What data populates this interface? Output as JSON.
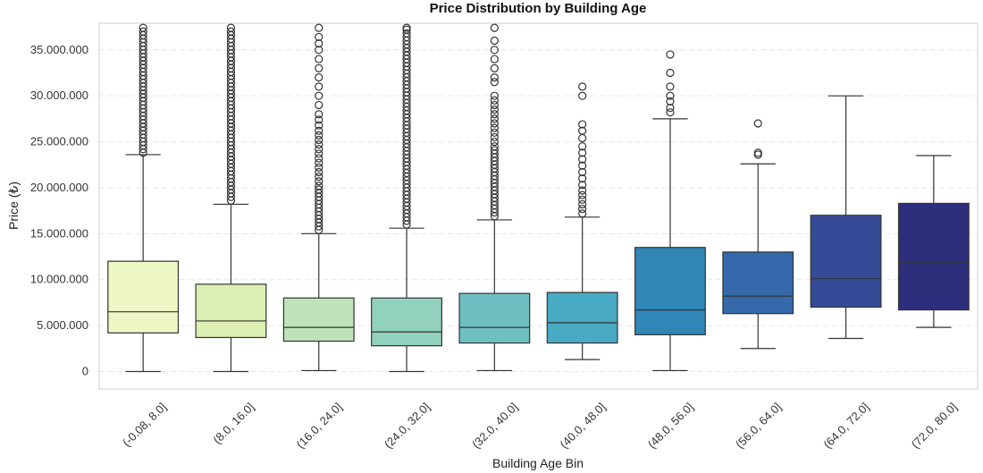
{
  "chart_data": {
    "type": "box",
    "title": "Price Distribution by Building Age",
    "xlabel": "Building Age Bin",
    "ylabel": "Price (₺)",
    "ylim": [
      -1900000,
      37900000
    ],
    "yticks": [
      0,
      5000000,
      10000000,
      15000000,
      20000000,
      25000000,
      30000000,
      35000000
    ],
    "ytick_labels": [
      "0",
      "5.000.000",
      "10.000.000",
      "15.000.000",
      "20.000.000",
      "25.000.000",
      "30.000.000",
      "35.000.000"
    ],
    "grid": "horizontal dashed",
    "categories": [
      "(-0.08, 8.0]",
      "(8.0, 16.0]",
      "(16.0, 24.0]",
      "(24.0, 32.0]",
      "(32.0, 40.0]",
      "(40.0, 48.0]",
      "(48.0, 56.0]",
      "(56.0, 64.0]",
      "(64.0, 72.0]",
      "(72.0, 80.0]"
    ],
    "boxes": [
      {
        "whisker_low": 0,
        "q1": 4200000,
        "median": 6500000,
        "q3": 12000000,
        "whisker_high": 23600000,
        "color": "#edf8c6",
        "outliers": [
          23800000,
          24200000,
          24600000,
          25000000,
          25400000,
          25800000,
          26200000,
          26600000,
          27000000,
          27400000,
          27800000,
          28200000,
          28600000,
          29000000,
          29400000,
          29800000,
          30200000,
          30600000,
          31000000,
          31400000,
          31800000,
          32200000,
          32600000,
          33000000,
          33400000,
          33800000,
          34200000,
          34600000,
          35000000,
          35400000,
          35800000,
          36200000,
          36600000,
          37000000,
          37400000
        ]
      },
      {
        "whisker_low": 0,
        "q1": 3700000,
        "median": 5500000,
        "q3": 9500000,
        "whisker_high": 18200000,
        "color": "#dcefb3",
        "outliers": [
          18600000,
          19000000,
          19400000,
          19800000,
          20200000,
          20600000,
          21000000,
          21400000,
          21800000,
          22200000,
          22600000,
          23000000,
          23400000,
          23800000,
          24200000,
          24600000,
          25000000,
          25400000,
          25800000,
          26200000,
          26600000,
          27000000,
          27400000,
          27800000,
          28200000,
          28600000,
          29000000,
          29400000,
          29800000,
          30200000,
          30600000,
          31000000,
          31400000,
          31800000,
          32200000,
          32600000,
          33000000,
          33400000,
          33800000,
          34200000,
          34600000,
          35000000,
          35400000,
          35800000,
          36200000,
          36600000,
          37000000,
          37400000
        ]
      },
      {
        "whisker_low": 100000,
        "q1": 3300000,
        "median": 4800000,
        "q3": 8000000,
        "whisker_high": 15000000,
        "color": "#bfe2b9",
        "outliers": [
          15400000,
          15800000,
          16200000,
          16600000,
          17000000,
          17400000,
          17800000,
          18200000,
          18600000,
          19000000,
          19400000,
          19800000,
          20200000,
          20700000,
          21200000,
          21700000,
          22200000,
          22700000,
          23200000,
          23700000,
          24200000,
          24700000,
          25200000,
          25700000,
          26200000,
          26800000,
          27400000,
          28000000,
          29000000,
          30000000,
          31000000,
          32000000,
          33000000,
          34000000,
          35000000,
          35700000,
          36400000,
          37400000
        ]
      },
      {
        "whisker_low": 0,
        "q1": 2800000,
        "median": 4300000,
        "q3": 8000000,
        "whisker_high": 15600000,
        "color": "#92d1bd",
        "outliers": [
          16000000,
          16400000,
          16800000,
          17200000,
          17600000,
          18000000,
          18400000,
          18800000,
          19200000,
          19600000,
          20000000,
          20400000,
          20800000,
          21200000,
          21600000,
          22000000,
          22400000,
          22800000,
          23200000,
          23600000,
          24000000,
          24400000,
          24800000,
          25200000,
          25600000,
          26000000,
          26400000,
          26800000,
          27200000,
          27600000,
          28000000,
          28400000,
          28800000,
          29200000,
          29600000,
          30000000,
          30400000,
          30800000,
          31200000,
          31600000,
          32000000,
          32400000,
          32800000,
          33200000,
          33600000,
          34000000,
          34400000,
          34800000,
          35200000,
          35600000,
          36000000,
          36400000,
          36800000,
          37200000,
          37400000
        ]
      },
      {
        "whisker_low": 100000,
        "q1": 3100000,
        "median": 4800000,
        "q3": 8500000,
        "whisker_high": 16500000,
        "color": "#6ebfc1",
        "outliers": [
          16900000,
          17300000,
          17700000,
          18100000,
          18500000,
          18900000,
          19300000,
          19700000,
          20100000,
          20500000,
          20900000,
          21300000,
          21700000,
          22100000,
          22500000,
          22900000,
          23300000,
          23700000,
          24100000,
          24500000,
          25000000,
          25500000,
          26000000,
          26500000,
          27000000,
          27500000,
          28000000,
          28500000,
          29000000,
          29500000,
          30000000,
          31500000,
          32000000,
          33000000,
          34000000,
          35000000,
          36000000,
          37400000
        ]
      },
      {
        "whisker_low": 1300000,
        "q1": 3100000,
        "median": 5300000,
        "q3": 8600000,
        "whisker_high": 16800000,
        "color": "#49aac3",
        "outliers": [
          17200000,
          17700000,
          18200000,
          18700000,
          19200000,
          19700000,
          20300000,
          21000000,
          21700000,
          22400000,
          23100000,
          23800000,
          24500000,
          25400000,
          26200000,
          26900000,
          30000000,
          31000000
        ]
      },
      {
        "whisker_low": 100000,
        "q1": 4000000,
        "median": 6700000,
        "q3": 13500000,
        "whisker_high": 27500000,
        "color": "#3186b8",
        "outliers": [
          28200000,
          28700000,
          29400000,
          30000000,
          31000000,
          32500000,
          34500000
        ]
      },
      {
        "whisker_low": 2500000,
        "q1": 6300000,
        "median": 8200000,
        "q3": 13000000,
        "whisker_high": 22600000,
        "color": "#3569ab",
        "outliers": [
          23600000,
          23800000,
          27000000
        ]
      },
      {
        "whisker_low": 3600000,
        "q1": 7000000,
        "median": 10100000,
        "q3": 17000000,
        "whisker_high": 30000000,
        "color": "#354b98",
        "outliers": []
      },
      {
        "whisker_low": 4800000,
        "q1": 6700000,
        "median": 11900000,
        "q3": 18300000,
        "whisker_high": 23500000,
        "color": "#2c2f7c",
        "outliers": []
      }
    ]
  }
}
